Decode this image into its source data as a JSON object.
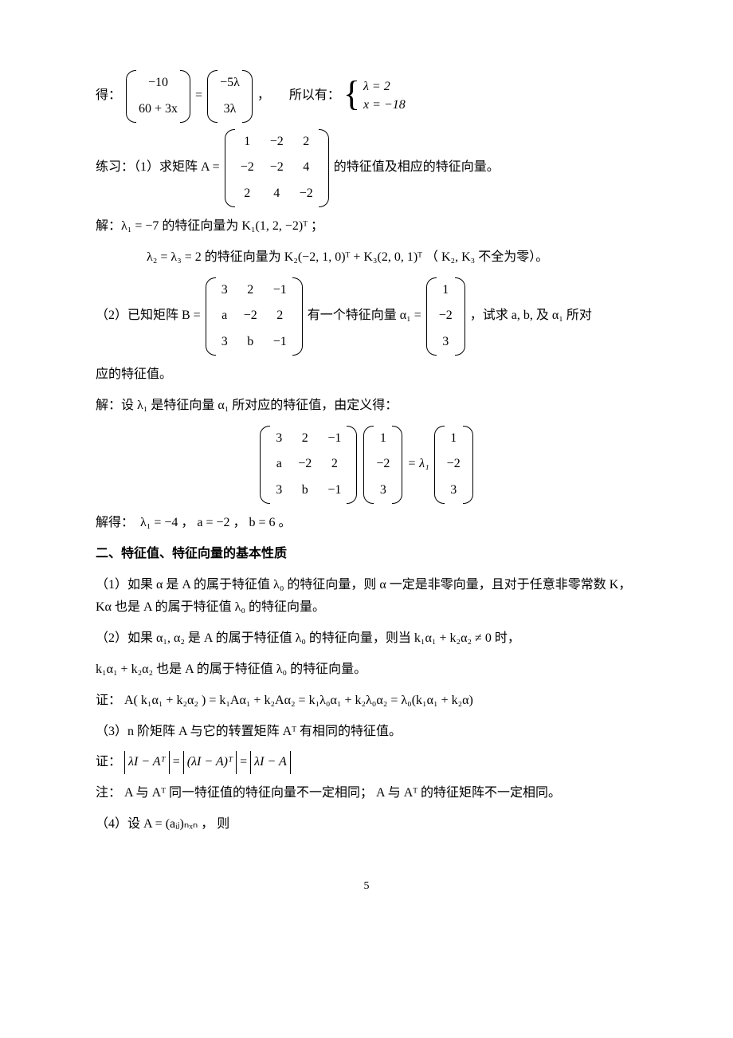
{
  "line1": {
    "pre": "得：",
    "v1a": "−10",
    "v1b": "60 + 3x",
    "v2a": "−5λ",
    "v2b": "3λ",
    "mid": "，　　所以有：",
    "sys1": "λ = 2",
    "sys2": "x = −18"
  },
  "line2": {
    "pre": "练习：（1）求矩阵 A =",
    "m": [
      [
        "1",
        "−2",
        "2"
      ],
      [
        "−2",
        "−2",
        "4"
      ],
      [
        "2",
        "4",
        "−2"
      ]
    ],
    "post": "的特征值及相应的特征向量。"
  },
  "line3": "解：λ₁ = −7 的特征向量为 K₁(1, 2, −2)ᵀ ；",
  "line4": "λ₂ = λ₃ = 2 的特征向量为 K₂(−2, 1, 0)ᵀ + K₃(2, 0, 1)ᵀ （ K₂, K₃ 不全为零）。",
  "line5": {
    "pre": "（2）已知矩阵 B =",
    "m": [
      [
        "3",
        "2",
        "−1"
      ],
      [
        "a",
        "−2",
        "2"
      ],
      [
        "3",
        "b",
        "−1"
      ]
    ],
    "mid": "有一个特征向量 α₁ =",
    "v": [
      "1",
      "−2",
      "3"
    ],
    "post": "，试求 a, b, 及 α₁ 所对"
  },
  "line5b": "应的特征值。",
  "line6": "解：设 λ₁ 是特征向量 α₁ 所对应的特征值，由定义得：",
  "line7": {
    "m": [
      [
        "3",
        "2",
        "−1"
      ],
      [
        "a",
        "−2",
        "2"
      ],
      [
        "3",
        "b",
        "−1"
      ]
    ],
    "v1": [
      "1",
      "−2",
      "3"
    ],
    "eq": "= λ₁",
    "v2": [
      "1",
      "−2",
      "3"
    ]
  },
  "line8": "解得：　λ₁ = −4 ，  a = −2 ，  b = 6 。",
  "heading": "二、特征值、特征向量的基本性质",
  "p1": "（1）如果 α 是 A 的属于特征值 λ₀ 的特征向量，则 α 一定是非零向量，且对于任意非零常数 K，Kα 也是 A 的属于特征值 λ₀ 的特征向量。",
  "p2a": "（2）如果 α₁, α₂ 是 A 的属于特征值 λ₀ 的特征向量，则当 k₁α₁ + k₂α₂ ≠ 0 时，",
  "p2b": "k₁α₁ + k₂α₂ 也是 A 的属于特征值 λ₀ 的特征向量。",
  "p2c": "证： A( k₁α₁ + k₂α₂ )  = k₁Aα₁ + k₂Aα₂ = k₁λ₀α₁ + k₂λ₀α₂ = λ₀(k₁α₁ + k₂α)",
  "p3": "（3）n 阶矩阵 A 与它的转置矩阵 Aᵀ 有相同的特征值。",
  "p3proof_pre": "证：",
  "p3proof_1": "λI − Aᵀ",
  "p3proof_2": "(λI − A)ᵀ",
  "p3proof_3": "λI − A  ",
  "p4": "注： A 与 Aᵀ 同一特征值的特征向量不一定相同； A 与 Aᵀ 的特征矩阵不一定相同。",
  "p5": "（4）设 A = (aᵢⱼ)ₙₓₙ ， 则",
  "pagenum": "5",
  "style": {
    "page_bg": "#ffffff",
    "text_color": "#000000",
    "body_font": "SimSun",
    "math_font": "Times New Roman",
    "font_size_pt": 12
  }
}
